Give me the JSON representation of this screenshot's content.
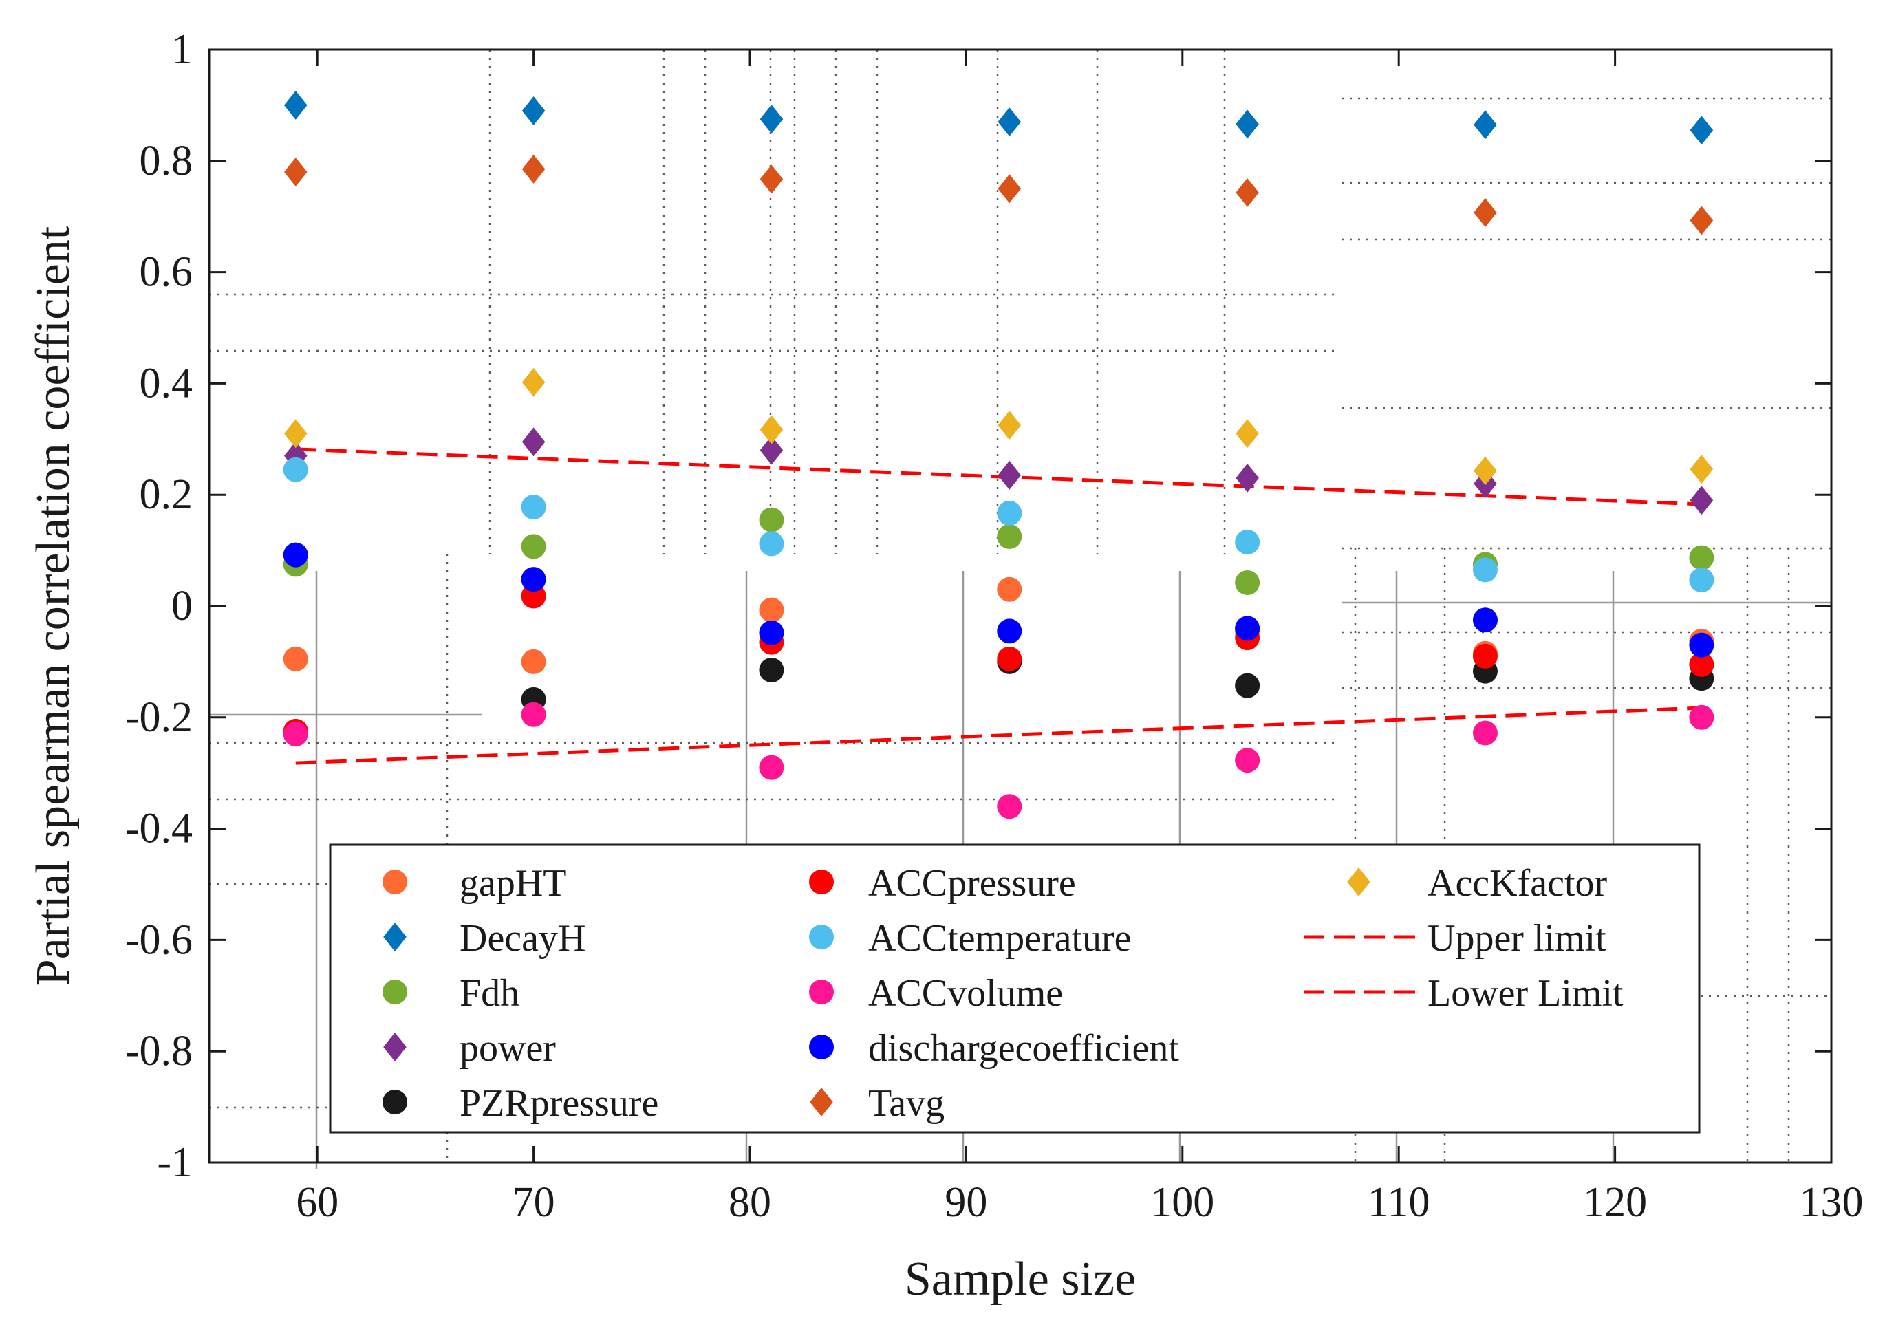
{
  "chart_data": {
    "type": "scatter",
    "title": "",
    "xlabel": "Sample size",
    "ylabel": "Partial spearman correlation coefficient",
    "xlim": [
      55,
      130
    ],
    "ylim": [
      -1,
      1
    ],
    "xticks": [
      60,
      70,
      80,
      90,
      100,
      110,
      120,
      130
    ],
    "yticks": [
      -1,
      -0.8,
      -0.6,
      -0.4,
      -0.2,
      0,
      0.2,
      0.4,
      0.6,
      0.8,
      1
    ],
    "x_tick_labels": [
      "60",
      "70",
      "80",
      "90",
      "100",
      "110",
      "120",
      "130"
    ],
    "y_tick_labels": [
      "-1",
      "-0.8",
      "-0.6",
      "-0.4",
      "-0.2",
      "0",
      "0.2",
      "0.4",
      "0.6",
      "0.8",
      "1"
    ],
    "x": [
      59,
      70,
      81,
      92,
      103,
      114,
      124
    ],
    "legend_position": "lower-right",
    "series": [
      {
        "name": "gapHT",
        "marker": "circle",
        "color": "#FF6A33",
        "values": [
          -0.095,
          -0.1,
          -0.007,
          0.03,
          -0.045,
          -0.085,
          -0.063
        ]
      },
      {
        "name": "DecayH",
        "marker": "diamond",
        "color": "#0072BD",
        "values": [
          0.9,
          0.89,
          0.875,
          0.87,
          0.866,
          0.865,
          0.855
        ]
      },
      {
        "name": "Fdh",
        "marker": "circle",
        "color": "#77AC30",
        "values": [
          0.075,
          0.107,
          0.155,
          0.125,
          0.042,
          0.075,
          0.087
        ]
      },
      {
        "name": "power",
        "marker": "diamond",
        "color": "#7E2F8E",
        "values": [
          0.27,
          0.295,
          0.28,
          0.235,
          0.23,
          0.22,
          0.19
        ]
      },
      {
        "name": "PZRpressure",
        "marker": "circle",
        "color": "#1A1A1A",
        "values": [
          -0.225,
          -0.168,
          -0.115,
          -0.1,
          -0.143,
          -0.117,
          -0.13
        ]
      },
      {
        "name": "ACCpressure",
        "marker": "circle",
        "color": "#FF0000",
        "values": [
          -0.225,
          0.018,
          -0.065,
          -0.095,
          -0.057,
          -0.09,
          -0.105
        ]
      },
      {
        "name": "ACCtemperature",
        "marker": "circle",
        "color": "#4DBEEE",
        "values": [
          0.245,
          0.178,
          0.112,
          0.167,
          0.115,
          0.065,
          0.047
        ]
      },
      {
        "name": "ACCvolume",
        "marker": "circle",
        "color": "#FF1493",
        "values": [
          -0.23,
          -0.195,
          -0.29,
          -0.36,
          -0.277,
          -0.228,
          -0.2
        ]
      },
      {
        "name": "dischargecoefficient",
        "marker": "circle",
        "color": "#0000FF",
        "values": [
          0.092,
          0.048,
          -0.048,
          -0.045,
          -0.04,
          -0.025,
          -0.07
        ]
      },
      {
        "name": "Tavg",
        "marker": "diamond",
        "color": "#D95319",
        "values": [
          0.78,
          0.785,
          0.767,
          0.75,
          0.743,
          0.707,
          0.693
        ]
      },
      {
        "name": "AccKfactor",
        "marker": "diamond",
        "color": "#EDB120",
        "values": [
          0.31,
          0.402,
          0.317,
          0.325,
          0.31,
          0.243,
          0.246
        ]
      },
      {
        "name": "Upper limit",
        "marker": "dashed-line",
        "color": "#FF0000",
        "x": [
          59,
          124
        ],
        "values": [
          0.282,
          0.183
        ]
      },
      {
        "name": "Lower Limit",
        "marker": "dashed-line",
        "color": "#FF0000",
        "x": [
          59,
          124
        ],
        "values": [
          -0.282,
          -0.183
        ]
      }
    ]
  }
}
